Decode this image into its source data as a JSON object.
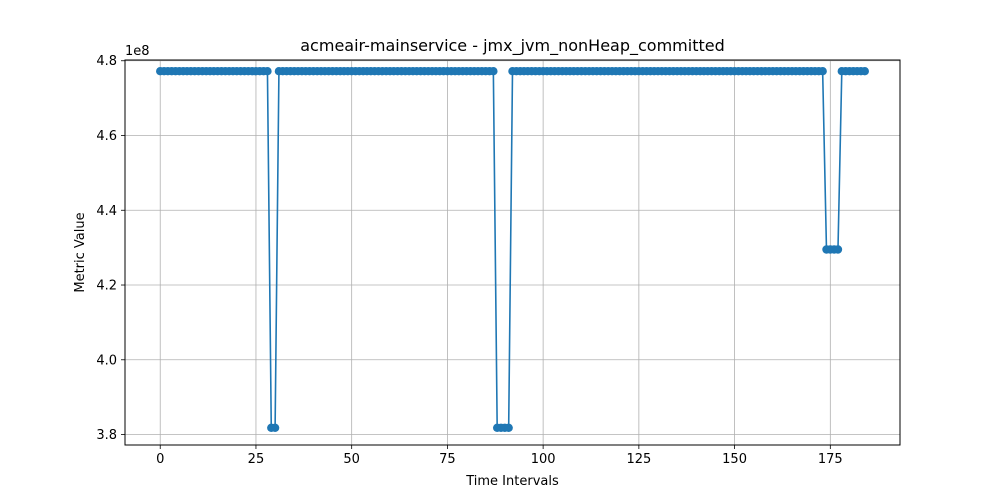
{
  "chart_data": {
    "type": "line",
    "title": "acmeair-mainservice - jmx_jvm_nonHeap_committed",
    "xlabel": "Time Intervals",
    "ylabel": "Metric Value",
    "offset_label": "1e8",
    "y_multiplier": 100000000,
    "xlim": [
      -9.2,
      193.2
    ],
    "ylim": [
      3.772,
      4.802
    ],
    "x_ticks": [
      0,
      25,
      50,
      75,
      100,
      125,
      150,
      175
    ],
    "y_ticks": [
      3.8,
      4.0,
      4.2,
      4.4,
      4.6,
      4.8
    ],
    "grid": true,
    "marker": "circle",
    "color": "#1f77b4",
    "series": [
      {
        "x_start": 0,
        "values": [
          4.772,
          4.772,
          4.772,
          4.772,
          4.772,
          4.772,
          4.772,
          4.772,
          4.772,
          4.772,
          4.772,
          4.772,
          4.772,
          4.772,
          4.772,
          4.772,
          4.772,
          4.772,
          4.772,
          4.772,
          4.772,
          4.772,
          4.772,
          4.772,
          4.772,
          4.772,
          4.772,
          4.772,
          4.772,
          3.818,
          3.818,
          4.772,
          4.772,
          4.772,
          4.772,
          4.772,
          4.772,
          4.772,
          4.772,
          4.772,
          4.772,
          4.772,
          4.772,
          4.772,
          4.772,
          4.772,
          4.772,
          4.772,
          4.772,
          4.772,
          4.772,
          4.772,
          4.772,
          4.772,
          4.772,
          4.772,
          4.772,
          4.772,
          4.772,
          4.772,
          4.772,
          4.772,
          4.772,
          4.772,
          4.772,
          4.772,
          4.772,
          4.772,
          4.772,
          4.772,
          4.772,
          4.772,
          4.772,
          4.772,
          4.772,
          4.772,
          4.772,
          4.772,
          4.772,
          4.772,
          4.772,
          4.772,
          4.772,
          4.772,
          4.772,
          4.772,
          4.772,
          4.772,
          3.818,
          3.818,
          3.818,
          3.818,
          4.772,
          4.772,
          4.772,
          4.772,
          4.772,
          4.772,
          4.772,
          4.772,
          4.772,
          4.772,
          4.772,
          4.772,
          4.772,
          4.772,
          4.772,
          4.772,
          4.772,
          4.772,
          4.772,
          4.772,
          4.772,
          4.772,
          4.772,
          4.772,
          4.772,
          4.772,
          4.772,
          4.772,
          4.772,
          4.772,
          4.772,
          4.772,
          4.772,
          4.772,
          4.772,
          4.772,
          4.772,
          4.772,
          4.772,
          4.772,
          4.772,
          4.772,
          4.772,
          4.772,
          4.772,
          4.772,
          4.772,
          4.772,
          4.772,
          4.772,
          4.772,
          4.772,
          4.772,
          4.772,
          4.772,
          4.772,
          4.772,
          4.772,
          4.772,
          4.772,
          4.772,
          4.772,
          4.772,
          4.772,
          4.772,
          4.772,
          4.772,
          4.772,
          4.772,
          4.772,
          4.772,
          4.772,
          4.772,
          4.772,
          4.772,
          4.772,
          4.772,
          4.772,
          4.772,
          4.772,
          4.772,
          4.772,
          4.295,
          4.295,
          4.295,
          4.295,
          4.772,
          4.772,
          4.772,
          4.772,
          4.772,
          4.772,
          4.772
        ]
      }
    ]
  }
}
